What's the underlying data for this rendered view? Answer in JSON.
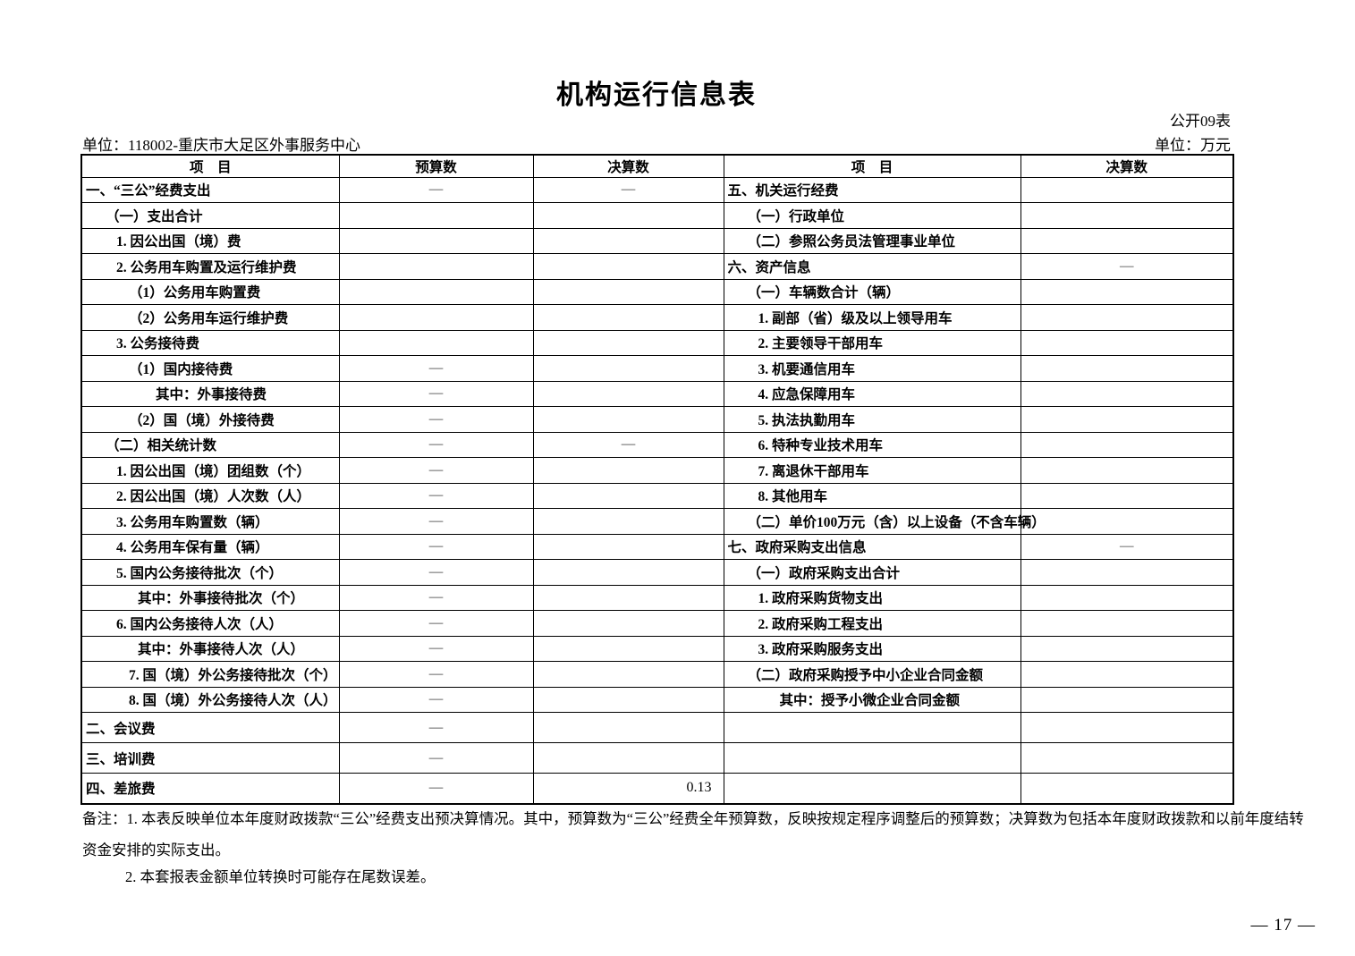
{
  "page": {
    "title": "机构运行信息表",
    "form_label": "公开09表",
    "unit_code_label": "单位：118002-重庆市大足区外事服务中心",
    "unit_currency_label": "单位：万元",
    "page_number": "— 17 —"
  },
  "table": {
    "headers": {
      "item_left": "项　目",
      "budget": "预算数",
      "final_left": "决算数",
      "item_right": "项　目",
      "final_right": "决算数"
    },
    "rows": [
      {
        "left_item": "一、“三公”经费支出",
        "left_level": 0,
        "budget": "—",
        "final": "—",
        "right_item": "五、机关运行经费",
        "right_level": 0,
        "right_final": ""
      },
      {
        "left_item": "（一）支出合计",
        "left_level": 1,
        "budget": "",
        "final": "",
        "right_item": "（一）行政单位",
        "right_level": 1,
        "right_final": ""
      },
      {
        "left_item": "1. 因公出国（境）费",
        "left_level": 2,
        "budget": "",
        "final": "",
        "right_item": "（二）参照公务员法管理事业单位",
        "right_level": 1,
        "right_final": ""
      },
      {
        "left_item": "2. 公务用车购置及运行维护费",
        "left_level": 2,
        "budget": "",
        "final": "",
        "right_item": "六、资产信息",
        "right_level": 0,
        "right_final": "—"
      },
      {
        "left_item": "（1）公务用车购置费",
        "left_level": 3,
        "budget": "",
        "final": "",
        "right_item": "（一）车辆数合计（辆）",
        "right_level": 1,
        "right_final": ""
      },
      {
        "left_item": "（2）公务用车运行维护费",
        "left_level": 3,
        "budget": "",
        "final": "",
        "right_item": "1. 副部（省）级及以上领导用车",
        "right_level": 2,
        "right_final": ""
      },
      {
        "left_item": "3. 公务接待费",
        "left_level": 2,
        "budget": "",
        "final": "",
        "right_item": "2. 主要领导干部用车",
        "right_level": 2,
        "right_final": ""
      },
      {
        "left_item": "（1）国内接待费",
        "left_level": 3,
        "budget": "—",
        "final": "",
        "right_item": "3. 机要通信用车",
        "right_level": 2,
        "right_final": ""
      },
      {
        "left_item": "其中：外事接待费",
        "left_level": 5,
        "budget": "—",
        "final": "",
        "right_item": "4. 应急保障用车",
        "right_level": 2,
        "right_final": ""
      },
      {
        "left_item": "（2）国（境）外接待费",
        "left_level": 3,
        "budget": "—",
        "final": "",
        "right_item": "5. 执法执勤用车",
        "right_level": 2,
        "right_final": ""
      },
      {
        "left_item": "（二）相关统计数",
        "left_level": 1,
        "budget": "—",
        "final": "—",
        "right_item": "6. 特种专业技术用车",
        "right_level": 2,
        "right_final": ""
      },
      {
        "left_item": "1. 因公出国（境）团组数（个）",
        "left_level": 2,
        "budget": "—",
        "final": "",
        "right_item": "7. 离退休干部用车",
        "right_level": 2,
        "right_final": ""
      },
      {
        "left_item": "2. 因公出国（境）人次数（人）",
        "left_level": 2,
        "budget": "—",
        "final": "",
        "right_item": "8. 其他用车",
        "right_level": 2,
        "right_final": ""
      },
      {
        "left_item": "3. 公务用车购置数（辆）",
        "left_level": 2,
        "budget": "—",
        "final": "",
        "right_item": "（二）单价100万元（含）以上设备（不含车辆）",
        "right_level": 1,
        "right_final": ""
      },
      {
        "left_item": "4. 公务用车保有量（辆）",
        "left_level": 2,
        "budget": "—",
        "final": "",
        "right_item": "七、政府采购支出信息",
        "right_level": 0,
        "right_final": "—"
      },
      {
        "left_item": "5. 国内公务接待批次（个）",
        "left_level": 2,
        "budget": "—",
        "final": "",
        "right_item": "（一）政府采购支出合计",
        "right_level": 1,
        "right_final": ""
      },
      {
        "left_item": "其中：外事接待批次（个）",
        "left_level": 4,
        "budget": "—",
        "final": "",
        "right_item": "1. 政府采购货物支出",
        "right_level": 2,
        "right_final": ""
      },
      {
        "left_item": "6. 国内公务接待人次（人）",
        "left_level": 2,
        "budget": "—",
        "final": "",
        "right_item": "2. 政府采购工程支出",
        "right_level": 2,
        "right_final": ""
      },
      {
        "left_item": "其中：外事接待人次（人）",
        "left_level": 4,
        "budget": "—",
        "final": "",
        "right_item": "3. 政府采购服务支出",
        "right_level": 2,
        "right_final": ""
      },
      {
        "left_item": "7. 国（境）外公务接待批次（个）",
        "left_level": 3,
        "budget": "—",
        "final": "",
        "right_item": "（二）政府采购授予中小企业合同金额",
        "right_level": 1,
        "right_final": ""
      },
      {
        "left_item": "8. 国（境）外公务接待人次（人）",
        "left_level": 3,
        "budget": "—",
        "final": "",
        "right_item": "其中：授予小微企业合同金额",
        "right_level": 4,
        "right_final": ""
      },
      {
        "left_item": "二、会议费",
        "left_level": 0,
        "budget": "—",
        "final": "",
        "right_item": "",
        "right_level": 0,
        "right_final": ""
      },
      {
        "left_item": "三、培训费",
        "left_level": 0,
        "budget": "—",
        "final": "",
        "right_item": "",
        "right_level": 0,
        "right_final": ""
      },
      {
        "left_item": "四、差旅费",
        "left_level": 0,
        "budget": "—",
        "final": "0.13",
        "right_item": "",
        "right_level": 0,
        "right_final": ""
      }
    ]
  },
  "notes": {
    "line1": "备注：1. 本表反映单位本年度财政拨款“三公”经费支出预决算情况。其中，预算数为“三公”经费全年预算数，反映按规定程序调整后的预算数；决算数为包括本年度财政拨款和以前年度结转",
    "line2": "资金安排的实际支出。",
    "line3": "2. 本套报表金额单位转换时可能存在尾数误差。"
  }
}
